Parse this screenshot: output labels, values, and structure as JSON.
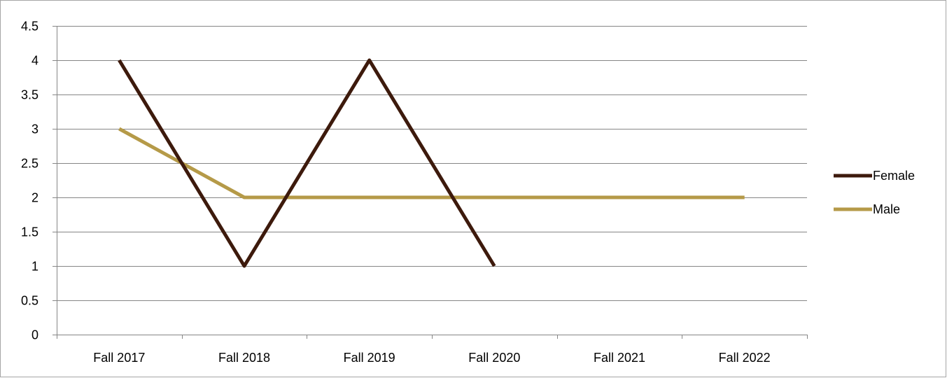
{
  "chart_data": {
    "type": "line",
    "title": "",
    "xlabel": "",
    "ylabel": "",
    "categories": [
      "Fall 2017",
      "Fall 2018",
      "Fall 2019",
      "Fall 2020",
      "Fall 2021",
      "Fall 2022"
    ],
    "ylim": [
      0,
      4.5
    ],
    "yticks": [
      0,
      0.5,
      1,
      1.5,
      2,
      2.5,
      3,
      3.5,
      4,
      4.5
    ],
    "ytick_labels": [
      "0",
      "0.5",
      "1",
      "1.5",
      "2",
      "2.5",
      "3",
      "3.5",
      "4",
      "4.5"
    ],
    "grid": true,
    "legend_position": "right",
    "series": [
      {
        "name": "Female",
        "color": "#3d1a0c",
        "values": [
          4,
          1,
          4,
          1,
          null,
          null
        ]
      },
      {
        "name": "Male",
        "color": "#b59a48",
        "values": [
          3,
          2,
          2,
          2,
          2,
          2
        ]
      }
    ]
  }
}
